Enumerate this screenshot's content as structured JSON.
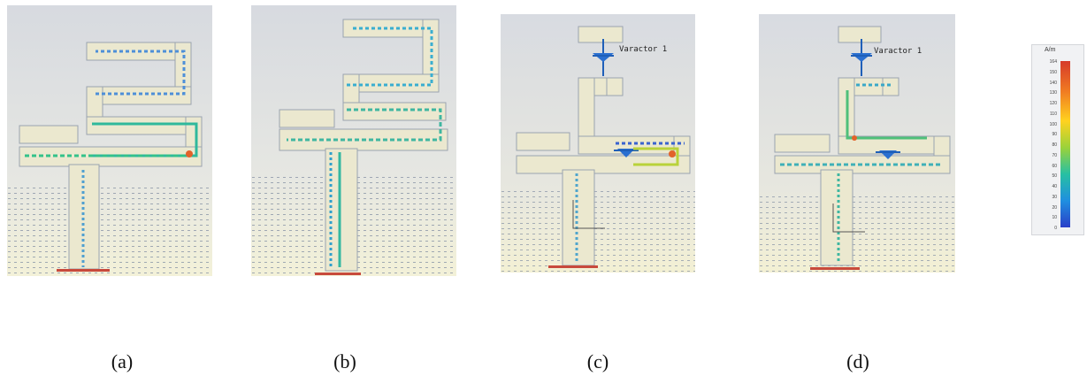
{
  "panels": [
    {
      "id": "a",
      "caption": "(a)"
    },
    {
      "id": "b",
      "caption": "(b)"
    },
    {
      "id": "c",
      "caption": "(c)",
      "varactor_label": "Varactor 1"
    },
    {
      "id": "d",
      "caption": "(d)",
      "varactor_label": "Varactor 1"
    }
  ],
  "legend": {
    "unit": "A/m",
    "ticks": [
      "164",
      "150",
      "140",
      "130",
      "120",
      "110",
      "100",
      "90",
      "80",
      "70",
      "60",
      "50",
      "40",
      "30",
      "20",
      "10",
      "0"
    ],
    "colors": {
      "high": "#d63a2a",
      "mid": "#ffd21f",
      "low": "#2a3fc8"
    }
  }
}
